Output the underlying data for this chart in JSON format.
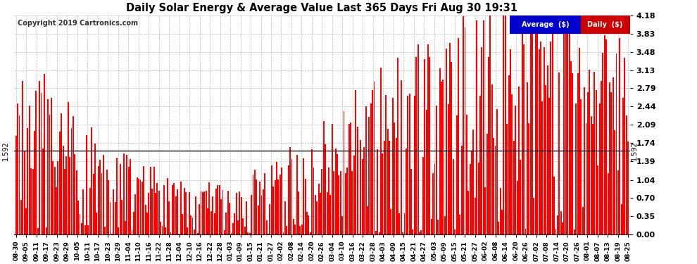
{
  "title": "Daily Solar Energy & Average Value Last 365 Days Fri Aug 30 19:31",
  "copyright": "Copyright 2019 Cartronics.com",
  "bar_color": "#ff0000",
  "avg_line_color": "#000000",
  "avg_value": 1.592,
  "ylim": [
    0.0,
    4.18
  ],
  "yticks": [
    0.0,
    0.35,
    0.7,
    1.04,
    1.39,
    1.74,
    2.09,
    2.44,
    2.79,
    3.13,
    3.48,
    3.83,
    4.18
  ],
  "legend_avg_color": "#0000cc",
  "legend_daily_color": "#cc0000",
  "legend_avg_text": "Average  ($)",
  "legend_daily_text": "Daily  ($)",
  "background_color": "#ffffff",
  "grid_color": "#bbbbbb",
  "x_labels": [
    "08-30",
    "09-05",
    "09-11",
    "09-17",
    "09-23",
    "09-29",
    "10-05",
    "10-11",
    "10-17",
    "10-23",
    "10-29",
    "11-04",
    "11-10",
    "11-16",
    "11-22",
    "11-28",
    "12-04",
    "12-10",
    "12-16",
    "12-22",
    "12-28",
    "01-03",
    "01-09",
    "01-15",
    "01-21",
    "01-27",
    "02-02",
    "02-08",
    "02-14",
    "02-20",
    "02-26",
    "03-04",
    "03-10",
    "03-16",
    "03-22",
    "03-28",
    "04-03",
    "04-09",
    "04-15",
    "04-21",
    "04-27",
    "05-03",
    "05-09",
    "05-15",
    "05-21",
    "05-27",
    "06-02",
    "06-08",
    "06-14",
    "06-20",
    "06-26",
    "07-02",
    "07-08",
    "07-14",
    "07-20",
    "07-26",
    "08-01",
    "08-07",
    "08-13",
    "08-19",
    "08-25"
  ],
  "num_bars": 365,
  "bar_width": 0.8
}
